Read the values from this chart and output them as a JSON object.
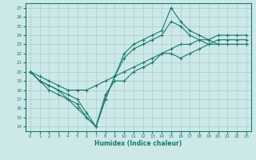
{
  "title": "",
  "xlabel": "Humidex (Indice chaleur)",
  "bg_color": "#cce8e8",
  "grid_color": "#aacccc",
  "line_color": "#1a7a6a",
  "xlim": [
    -0.5,
    23.5
  ],
  "ylim": [
    13.5,
    27.5
  ],
  "xticks": [
    0,
    1,
    2,
    3,
    4,
    5,
    6,
    7,
    8,
    9,
    10,
    11,
    12,
    13,
    14,
    15,
    16,
    17,
    18,
    19,
    20,
    21,
    22,
    23
  ],
  "yticks": [
    14,
    15,
    16,
    17,
    18,
    19,
    20,
    21,
    22,
    23,
    24,
    25,
    26,
    27
  ],
  "line1_x": [
    0,
    1,
    2,
    3,
    4,
    5,
    6,
    7,
    8,
    9,
    10,
    11,
    12,
    13,
    14,
    15,
    16,
    17,
    18,
    19,
    20,
    21,
    22,
    23
  ],
  "line1_y": [
    20,
    19,
    18.5,
    18,
    17.5,
    17,
    15.5,
    14,
    17.5,
    19,
    19,
    20,
    20.5,
    21,
    22,
    22,
    21.5,
    22,
    22.5,
    23,
    23.5,
    23.5,
    23.5,
    23.5
  ],
  "line2_x": [
    0,
    1,
    2,
    3,
    4,
    5,
    6,
    7,
    8,
    9,
    10,
    11,
    12,
    13,
    14,
    15,
    16,
    17,
    18,
    19,
    20,
    21,
    22,
    23
  ],
  "line2_y": [
    20,
    19.5,
    19,
    18.5,
    18,
    18,
    18,
    18.5,
    19,
    19.5,
    20,
    20.5,
    21,
    21.5,
    22,
    22.5,
    23,
    23,
    23.5,
    23.5,
    24,
    24,
    24,
    24
  ],
  "line3_x": [
    0,
    1,
    2,
    3,
    4,
    5,
    6,
    7,
    8,
    9,
    10,
    11,
    12,
    13,
    14,
    15,
    16,
    17,
    18,
    19,
    20,
    21,
    22,
    23
  ],
  "line3_y": [
    20,
    19,
    18,
    17.5,
    17,
    16.5,
    15,
    14,
    17,
    19.5,
    22,
    23,
    23.5,
    24,
    24.5,
    27,
    25.5,
    24.5,
    24,
    23.5,
    23,
    23,
    23,
    23
  ],
  "line4_x": [
    0,
    1,
    2,
    3,
    4,
    5,
    6,
    7,
    8,
    9,
    10,
    11,
    12,
    13,
    14,
    15,
    16,
    17,
    18,
    19,
    20,
    21,
    22,
    23
  ],
  "line4_y": [
    20,
    19,
    18.5,
    18,
    17,
    16,
    15,
    14,
    17,
    19.5,
    21.5,
    22.5,
    23,
    23.5,
    24,
    25.5,
    25,
    24,
    23.5,
    23,
    23,
    23,
    23,
    23
  ]
}
